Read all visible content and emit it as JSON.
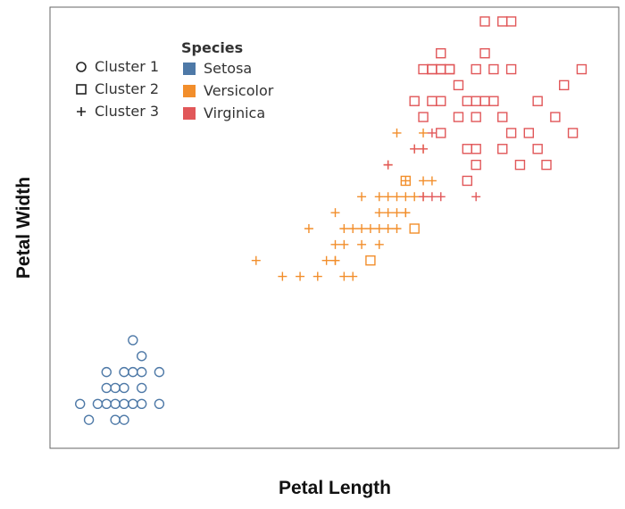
{
  "chart_data": {
    "type": "scatter",
    "xlabel": "Petal Length",
    "ylabel": "Petal Width",
    "xlim": [
      0.8,
      7.0
    ],
    "ylim": [
      0.0,
      2.6
    ],
    "grid": false,
    "colors": {
      "Setosa": "#4e79a7",
      "Versicolor": "#f28e2b",
      "Virginica": "#e15759"
    },
    "legend_shape": {
      "title": "",
      "entries": [
        {
          "label": "Cluster 1",
          "shape": "circle"
        },
        {
          "label": "Cluster 2",
          "shape": "square"
        },
        {
          "label": "Cluster 3",
          "shape": "plus"
        }
      ]
    },
    "legend_color": {
      "title": "Species",
      "entries": [
        "Setosa",
        "Versicolor",
        "Virginica"
      ]
    },
    "series": [
      {
        "name": "Setosa",
        "points": [
          [
            1.0,
            0.2
          ],
          [
            1.2,
            0.2
          ],
          [
            1.3,
            0.2
          ],
          [
            1.4,
            0.2
          ],
          [
            1.5,
            0.2
          ],
          [
            1.6,
            0.2
          ],
          [
            1.7,
            0.2
          ],
          [
            1.9,
            0.2
          ],
          [
            1.1,
            0.1
          ],
          [
            1.4,
            0.1
          ],
          [
            1.5,
            0.1
          ],
          [
            1.3,
            0.3
          ],
          [
            1.4,
            0.3
          ],
          [
            1.5,
            0.3
          ],
          [
            1.7,
            0.3
          ],
          [
            1.3,
            0.4
          ],
          [
            1.5,
            0.4
          ],
          [
            1.6,
            0.4
          ],
          [
            1.7,
            0.4
          ],
          [
            1.9,
            0.4
          ],
          [
            1.7,
            0.5
          ],
          [
            1.6,
            0.6
          ]
        ],
        "clusters": [
          1,
          1,
          1,
          1,
          1,
          1,
          1,
          1,
          1,
          1,
          1,
          1,
          1,
          1,
          1,
          1,
          1,
          1,
          1,
          1,
          1,
          1
        ]
      },
      {
        "name": "Versicolor",
        "points": [
          [
            3.0,
            1.1
          ],
          [
            3.3,
            1.0
          ],
          [
            3.5,
            1.0
          ],
          [
            3.7,
            1.0
          ],
          [
            3.9,
            1.1
          ],
          [
            4.0,
            1.0
          ],
          [
            4.1,
            1.0
          ],
          [
            3.8,
            1.1
          ],
          [
            3.9,
            1.1
          ],
          [
            3.6,
            1.3
          ],
          [
            3.9,
            1.2
          ],
          [
            4.0,
            1.2
          ],
          [
            4.2,
            1.2
          ],
          [
            4.4,
            1.2
          ],
          [
            4.0,
            1.3
          ],
          [
            4.1,
            1.3
          ],
          [
            4.2,
            1.3
          ],
          [
            4.3,
            1.3
          ],
          [
            4.4,
            1.3
          ],
          [
            4.5,
            1.3
          ],
          [
            4.6,
            1.3
          ],
          [
            3.9,
            1.4
          ],
          [
            4.4,
            1.4
          ],
          [
            4.5,
            1.4
          ],
          [
            4.6,
            1.4
          ],
          [
            4.7,
            1.4
          ],
          [
            4.2,
            1.5
          ],
          [
            4.5,
            1.5
          ],
          [
            4.6,
            1.5
          ],
          [
            4.7,
            1.5
          ],
          [
            4.9,
            1.5
          ],
          [
            4.7,
            1.6
          ],
          [
            4.9,
            1.6
          ],
          [
            5.0,
            1.6
          ],
          [
            4.8,
            1.8
          ],
          [
            4.9,
            1.8
          ],
          [
            4.5,
            1.7
          ],
          [
            4.9,
            1.9
          ],
          [
            4.8,
            1.5
          ],
          [
            4.4,
            1.5
          ],
          [
            4.7,
            1.4
          ],
          [
            4.6,
            1.9
          ],
          [
            4.8,
            1.3
          ],
          [
            4.3,
            1.1
          ],
          [
            4.7,
            1.6
          ]
        ],
        "clusters": [
          3,
          3,
          3,
          3,
          3,
          3,
          3,
          3,
          3,
          3,
          3,
          3,
          3,
          3,
          3,
          3,
          3,
          3,
          3,
          3,
          3,
          3,
          3,
          3,
          3,
          3,
          3,
          3,
          3,
          3,
          3,
          3,
          3,
          3,
          3,
          3,
          3,
          3,
          3,
          3,
          3,
          3,
          2,
          2,
          2
        ]
      },
      {
        "name": "Virginica",
        "points": [
          [
            4.5,
            1.7
          ],
          [
            4.8,
            1.8
          ],
          [
            4.9,
            1.8
          ],
          [
            5.0,
            1.9
          ],
          [
            5.5,
            1.5
          ],
          [
            4.9,
            1.5
          ],
          [
            5.0,
            1.5
          ],
          [
            5.1,
            1.5
          ],
          [
            4.9,
            2.0
          ],
          [
            5.1,
            2.1
          ],
          [
            5.0,
            2.1
          ],
          [
            5.2,
            2.3
          ],
          [
            5.3,
            2.2
          ],
          [
            5.1,
            2.4
          ],
          [
            5.1,
            2.3
          ],
          [
            4.8,
            2.1
          ],
          [
            5.0,
            2.3
          ],
          [
            5.6,
            2.6
          ],
          [
            5.8,
            2.6
          ],
          [
            5.9,
            2.6
          ],
          [
            5.6,
            2.4
          ],
          [
            4.9,
            2.3
          ],
          [
            5.0,
            2.3
          ],
          [
            5.2,
            2.3
          ],
          [
            5.1,
            2.3
          ],
          [
            5.5,
            2.3
          ],
          [
            5.7,
            2.3
          ],
          [
            5.9,
            2.3
          ],
          [
            6.7,
            2.3
          ],
          [
            5.4,
            2.1
          ],
          [
            5.5,
            2.1
          ],
          [
            5.6,
            2.1
          ],
          [
            5.7,
            2.1
          ],
          [
            6.5,
            2.2
          ],
          [
            5.3,
            2.0
          ],
          [
            5.5,
            2.0
          ],
          [
            5.8,
            2.0
          ],
          [
            6.4,
            2.0
          ],
          [
            5.1,
            1.9
          ],
          [
            5.9,
            1.9
          ],
          [
            6.6,
            1.9
          ],
          [
            5.4,
            1.8
          ],
          [
            5.5,
            1.8
          ],
          [
            5.8,
            1.8
          ],
          [
            6.2,
            1.8
          ],
          [
            5.5,
            1.7
          ],
          [
            6.0,
            1.7
          ],
          [
            6.3,
            1.7
          ],
          [
            6.1,
            1.9
          ],
          [
            6.2,
            2.1
          ],
          [
            5.4,
            1.6
          ]
        ],
        "clusters": [
          3,
          3,
          3,
          3,
          3,
          3,
          3,
          3,
          2,
          2,
          2,
          2,
          2,
          2,
          2,
          2,
          2,
          2,
          2,
          2,
          2,
          2,
          2,
          2,
          2,
          2,
          2,
          2,
          2,
          2,
          2,
          2,
          2,
          2,
          2,
          2,
          2,
          2,
          2,
          2,
          2,
          2,
          2,
          2,
          2,
          2,
          2,
          2,
          2,
          2,
          2
        ]
      }
    ]
  }
}
